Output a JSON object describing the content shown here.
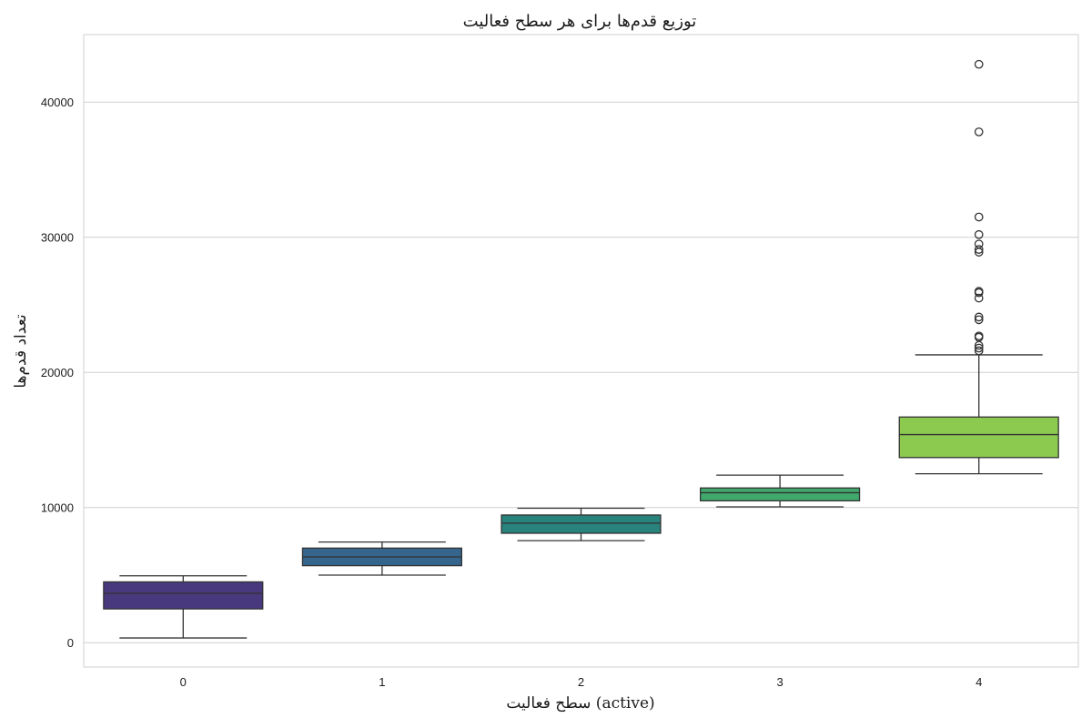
{
  "chart_data": {
    "type": "box",
    "title": "توزیع قدم‌ها برای هر سطح فعالیت",
    "xlabel": "سطح فعالیت (active)",
    "ylabel": "تعداد قدم‌ها",
    "categories": [
      "0",
      "1",
      "2",
      "3",
      "4"
    ],
    "ylim": [
      -1800,
      45000
    ],
    "yticks": [
      0,
      10000,
      20000,
      30000,
      40000
    ],
    "ytick_labels": [
      "0",
      "10000",
      "20000",
      "30000",
      "40000"
    ],
    "grid": true,
    "colors": [
      "#48397f",
      "#35658c",
      "#27837b",
      "#40a86b",
      "#8bc94f"
    ],
    "boxes": [
      {
        "category": "0",
        "whislo": 350,
        "q1": 2500,
        "median": 3650,
        "q3": 4500,
        "whishi": 4950,
        "fliers": []
      },
      {
        "category": "1",
        "whislo": 5000,
        "q1": 5700,
        "median": 6350,
        "q3": 7000,
        "whishi": 7450,
        "fliers": []
      },
      {
        "category": "2",
        "whislo": 7550,
        "q1": 8100,
        "median": 8850,
        "q3": 9450,
        "whishi": 9950,
        "fliers": []
      },
      {
        "category": "3",
        "whislo": 10050,
        "q1": 10500,
        "median": 11100,
        "q3": 11450,
        "whishi": 12400,
        "fliers": []
      },
      {
        "category": "4",
        "whislo": 12500,
        "q1": 13700,
        "median": 15400,
        "q3": 16700,
        "whishi": 21300,
        "fliers": [
          21600,
          21800,
          22000,
          22600,
          22700,
          23900,
          24100,
          25500,
          25900,
          26000,
          28900,
          29100,
          29500,
          30200,
          31500,
          37800,
          42800
        ]
      }
    ]
  }
}
